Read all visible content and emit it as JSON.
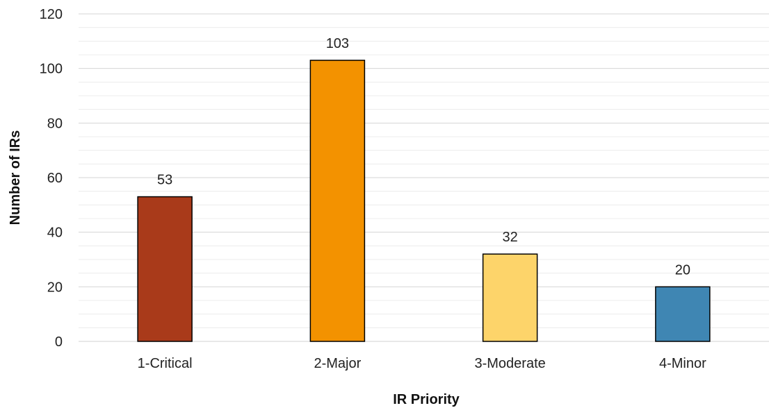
{
  "chart_data": {
    "type": "bar",
    "title": "",
    "xlabel": "IR Priority",
    "ylabel": "Number of IRs",
    "categories": [
      "1-Critical",
      "2-Major",
      "3-Moderate",
      "4-Minor"
    ],
    "values": [
      53,
      103,
      32,
      20
    ],
    "colors": [
      "#a93a1a",
      "#f39200",
      "#fdd46a",
      "#3f86b3"
    ],
    "ylim": [
      0,
      120
    ],
    "yticks": [
      0,
      20,
      40,
      60,
      80,
      100,
      120
    ],
    "minor_gridlines_step": 4,
    "grid": true,
    "legend": "none"
  }
}
